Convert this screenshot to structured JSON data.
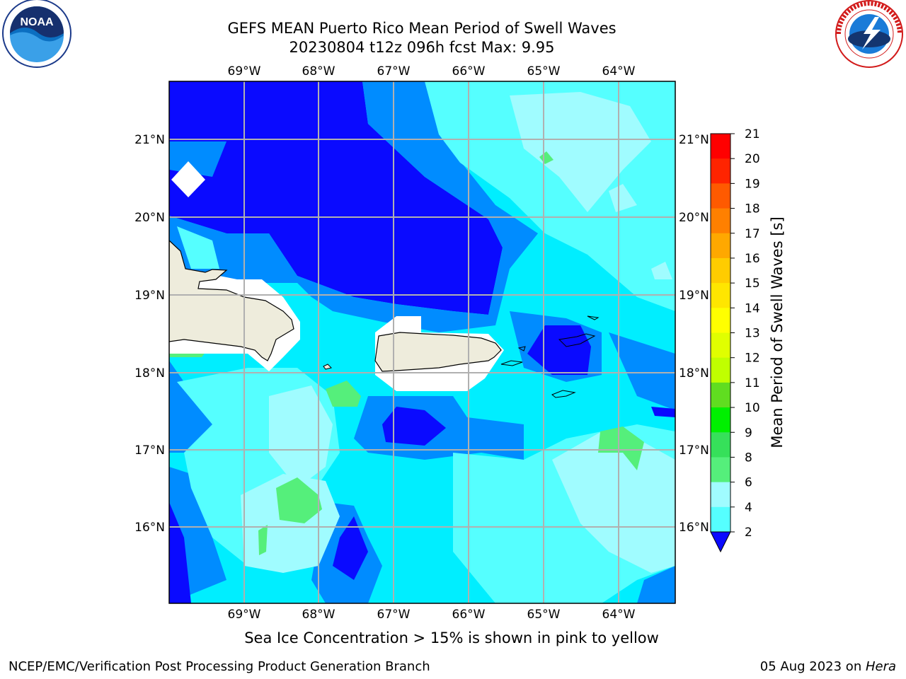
{
  "title": {
    "line1": "GEFS MEAN Puerto Rico Mean Period of Swell Waves",
    "line2": "20230804 t12z 096h fcst   Max: 9.95"
  },
  "logos": {
    "left": {
      "name": "noaa-logo",
      "text": "NOAA",
      "ring_text": "NATIONAL OCEANIC AND ATMOSPHERIC ADMINISTRATION · U.S. DEPARTMENT OF COMMERCE"
    },
    "right": {
      "name": "nws-logo",
      "ring_text": "NATIONAL WEATHER SERVICE"
    }
  },
  "map": {
    "lon_range": [
      -70,
      -63.25
    ],
    "lat_range": [
      15,
      21.75
    ],
    "lon_ticks": [
      "69°W",
      "68°W",
      "67°W",
      "66°W",
      "65°W",
      "64°W"
    ],
    "lat_ticks": [
      "21°N",
      "20°N",
      "19°N",
      "18°N",
      "17°N",
      "16°N"
    ],
    "grid": true,
    "land_color": "#eeecdc",
    "regions": [
      "Hispaniola (east)",
      "Puerto Rico",
      "Virgin Islands"
    ]
  },
  "colorbar": {
    "title": "Mean Period of Swell Waves [s]",
    "ticks": [
      "21",
      "20",
      "19",
      "18",
      "17",
      "16",
      "15",
      "14",
      "13",
      "12",
      "11",
      "10",
      "9",
      "8",
      "6",
      "4",
      "2"
    ],
    "colors": [
      "#ff0000",
      "#ff2400",
      "#ff5a00",
      "#ff8000",
      "#ffa800",
      "#ffcc00",
      "#ffe600",
      "#ffff00",
      "#e0ff00",
      "#c0ff00",
      "#60dd20",
      "#00f000",
      "#36e05a",
      "#55ef7b",
      "#a0fcff",
      "#55ffff",
      "#00eeff",
      "#008cff",
      "#0a0aff"
    ],
    "extend": "min"
  },
  "note": "Sea Ice Concentration > 15% is shown in pink to yellow",
  "footer": {
    "left": "NCEP/EMC/Verification Post Processing Product Generation Branch",
    "right_date": "05 Aug 2023 on ",
    "right_host": "Hera"
  }
}
